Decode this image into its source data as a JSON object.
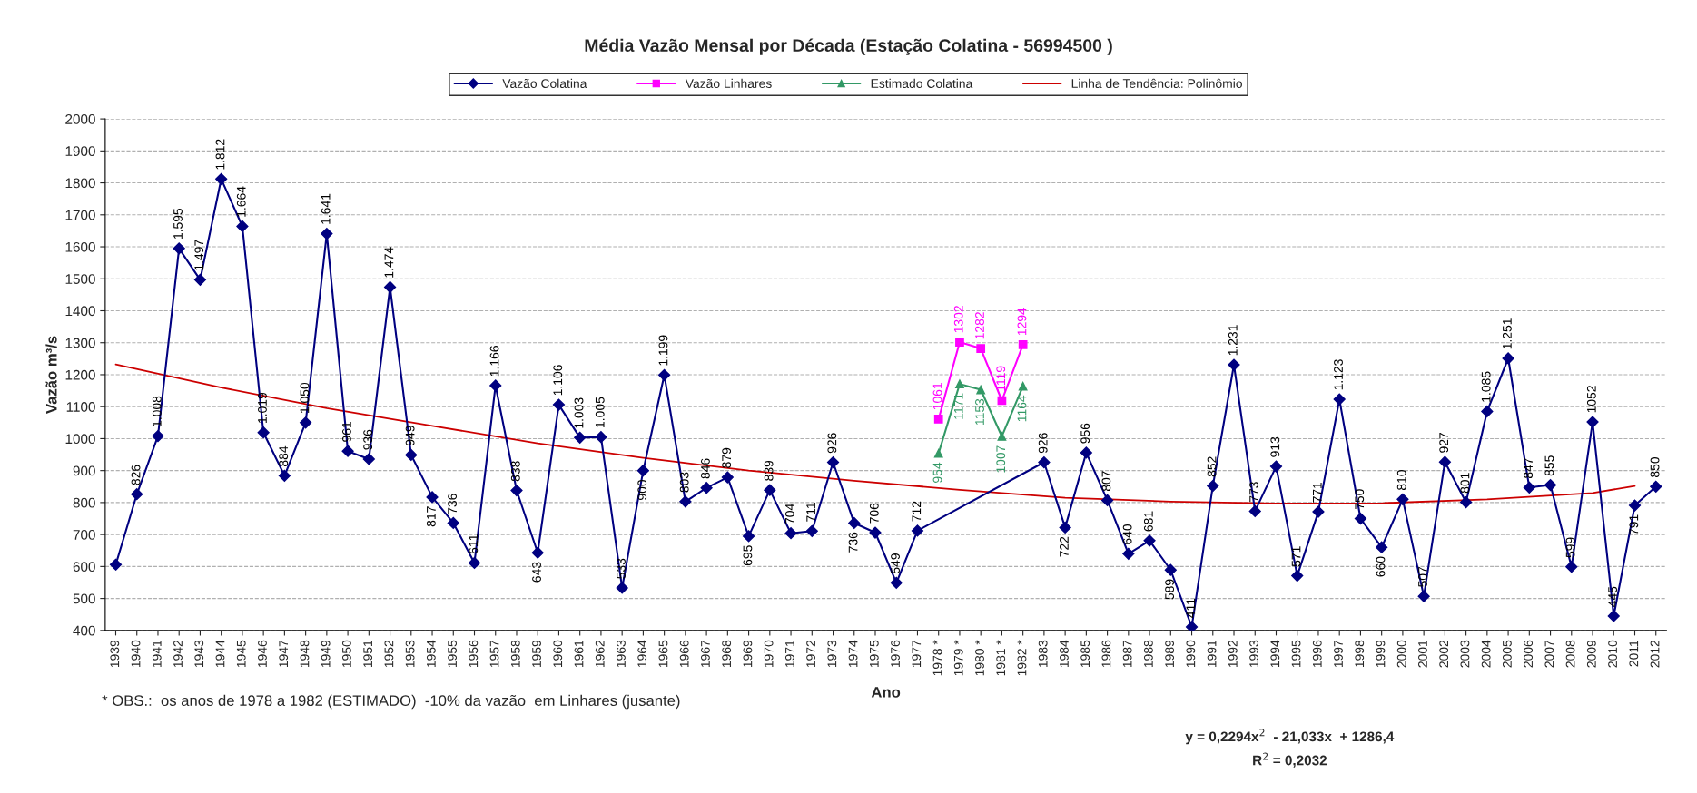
{
  "chart_data": {
    "type": "line",
    "title": "Média Vazão Mensal por Década (Estação Colatina - 56994500 )",
    "xlabel": "Ano",
    "ylabel": "Vazão m³/s",
    "categories": [
      "1939",
      "1940",
      "1941",
      "1942",
      "1943",
      "1944",
      "1945",
      "1946",
      "1947",
      "1948",
      "1949",
      "1950",
      "1951",
      "1952",
      "1953",
      "1954",
      "1955",
      "1956",
      "1957",
      "1958",
      "1959",
      "1960",
      "1961",
      "1962",
      "1963",
      "1964",
      "1965",
      "1966",
      "1967",
      "1968",
      "1969",
      "1970",
      "1971",
      "1972",
      "1973",
      "1974",
      "1975",
      "1976",
      "1977",
      "1978 *",
      "1979 *",
      "1980 *",
      "1981 *",
      "1982 *",
      "1983",
      "1984",
      "1985",
      "1986",
      "1987",
      "1988",
      "1989",
      "1990",
      "1991",
      "1992",
      "1993",
      "1994",
      "1995",
      "1996",
      "1997",
      "1998",
      "1999",
      "2000",
      "2001",
      "2002",
      "2003",
      "2004",
      "2005",
      "2006",
      "2007",
      "2008",
      "2009",
      "2010",
      "2011",
      "2012"
    ],
    "series": [
      {
        "name": "Vazão Colatina",
        "color": "#000080",
        "marker": "diamond",
        "values": [
          606,
          826,
          1008,
          1595,
          1497,
          1812,
          1664,
          1019,
          884,
          1050,
          1641,
          961,
          936,
          1474,
          949,
          817,
          736,
          611,
          1166,
          838,
          643,
          1106,
          1003,
          1005,
          533,
          900,
          1199,
          803,
          846,
          879,
          695,
          839,
          704,
          711,
          926,
          736,
          706,
          549,
          712,
          null,
          null,
          null,
          null,
          null,
          926,
          722,
          956,
          807,
          640,
          681,
          589,
          411,
          852,
          1231,
          773,
          913,
          571,
          771,
          1123,
          750,
          660,
          810,
          507,
          927,
          801,
          1085,
          1251,
          847,
          855,
          599,
          1052,
          445,
          791,
          850
        ],
        "value_labels": [
          null,
          "826",
          "1.008",
          "1.595",
          "1.497",
          "1.812",
          "1.664",
          "1.019",
          "884",
          "1.050",
          "1.641",
          "961",
          "936",
          "1.474",
          "949",
          "817",
          "736",
          "611",
          "1.166",
          "838",
          "643",
          "1.106",
          "1.003",
          "1.005",
          "533",
          "900",
          "1.199",
          "803",
          "846",
          "879",
          "695",
          "839",
          "704",
          "711",
          "926",
          "736",
          "706",
          "549",
          "712",
          null,
          null,
          null,
          null,
          null,
          "926",
          "722",
          "956",
          "807",
          "640",
          "681",
          "589",
          "411",
          "852",
          "1.231",
          "773",
          "913",
          "571",
          "771",
          "1.123",
          "750",
          "660",
          "810",
          "507",
          "927",
          "801",
          "1.085",
          "1.251",
          "847",
          "855",
          "599",
          "1052",
          "445",
          "791",
          "850"
        ]
      },
      {
        "name": "Vazão Linhares",
        "color": "#ff00ff",
        "marker": "square",
        "values": [
          null,
          null,
          null,
          null,
          null,
          null,
          null,
          null,
          null,
          null,
          null,
          null,
          null,
          null,
          null,
          null,
          null,
          null,
          null,
          null,
          null,
          null,
          null,
          null,
          null,
          null,
          null,
          null,
          null,
          null,
          null,
          null,
          null,
          null,
          null,
          null,
          null,
          null,
          null,
          1061,
          1302,
          1282,
          1119,
          1294,
          null,
          null,
          null,
          null,
          null,
          null,
          null,
          null,
          null,
          null,
          null,
          null,
          null,
          null,
          null,
          null,
          null,
          null,
          null,
          null,
          null,
          null,
          null,
          null,
          null,
          null,
          null,
          null,
          null,
          null
        ],
        "value_labels": [
          null,
          null,
          null,
          null,
          null,
          null,
          null,
          null,
          null,
          null,
          null,
          null,
          null,
          null,
          null,
          null,
          null,
          null,
          null,
          null,
          null,
          null,
          null,
          null,
          null,
          null,
          null,
          null,
          null,
          null,
          null,
          null,
          null,
          null,
          null,
          null,
          null,
          null,
          null,
          "1061",
          "1302",
          "1282",
          "1119",
          "1294",
          null,
          null,
          null,
          null,
          null,
          null,
          null,
          null,
          null,
          null,
          null,
          null,
          null,
          null,
          null,
          null,
          null,
          null,
          null,
          null,
          null,
          null,
          null,
          null,
          null,
          null,
          null,
          null,
          null,
          null
        ]
      },
      {
        "name": "Estimado Colatina",
        "color": "#339966",
        "marker": "triangle",
        "values": [
          null,
          null,
          null,
          null,
          null,
          null,
          null,
          null,
          null,
          null,
          null,
          null,
          null,
          null,
          null,
          null,
          null,
          null,
          null,
          null,
          null,
          null,
          null,
          null,
          null,
          null,
          null,
          null,
          null,
          null,
          null,
          null,
          null,
          null,
          null,
          null,
          null,
          null,
          null,
          954,
          1171,
          1153,
          1007,
          1164,
          null,
          null,
          null,
          null,
          null,
          null,
          null,
          null,
          null,
          null,
          null,
          null,
          null,
          null,
          null,
          null,
          null,
          null,
          null,
          null,
          null,
          null,
          null,
          null,
          null,
          null,
          null,
          null,
          null,
          null
        ],
        "value_labels": [
          null,
          null,
          null,
          null,
          null,
          null,
          null,
          null,
          null,
          null,
          null,
          null,
          null,
          null,
          null,
          null,
          null,
          null,
          null,
          null,
          null,
          null,
          null,
          null,
          null,
          null,
          null,
          null,
          null,
          null,
          null,
          null,
          null,
          null,
          null,
          null,
          null,
          null,
          null,
          "954",
          "1171",
          "1153",
          "1007",
          "1164",
          null,
          null,
          null,
          null,
          null,
          null,
          null,
          null,
          null,
          null,
          null,
          null,
          null,
          null,
          null,
          null,
          null,
          null,
          null,
          null,
          null,
          null,
          null,
          null,
          null,
          null,
          null,
          null,
          null,
          null
        ]
      },
      {
        "name": "Linha de Tendência: Polinômio",
        "color": "#cc0000",
        "marker": "none",
        "values": [
          1232,
          null,
          null,
          null,
          null,
          1160,
          null,
          null,
          null,
          null,
          1095,
          null,
          null,
          null,
          null,
          1040,
          null,
          null,
          null,
          null,
          985,
          null,
          null,
          null,
          null,
          940,
          null,
          null,
          null,
          null,
          900,
          null,
          null,
          null,
          null,
          868,
          null,
          null,
          null,
          null,
          840,
          null,
          null,
          null,
          null,
          815,
          null,
          null,
          null,
          null,
          803,
          null,
          null,
          null,
          null,
          797,
          null,
          null,
          null,
          null,
          798,
          null,
          null,
          null,
          null,
          810,
          null,
          null,
          null,
          null,
          830,
          null,
          852,
          null
        ]
      }
    ],
    "ylim": [
      400,
      2000
    ],
    "yticks": [
      400,
      500,
      600,
      700,
      800,
      900,
      1000,
      1100,
      1200,
      1300,
      1400,
      1500,
      1600,
      1700,
      1800,
      1900,
      2000
    ],
    "grid": "y",
    "legend": "top",
    "annotations": [
      "* OBS.:  os anos de 1978 a 1982 (ESTIMADO)  -10% da vazão  em Linhares (jusante)",
      "y = 0,2294x$^{2}$  - 21,033x  + 1286,4",
      "R$^{2}$ = 0,2032"
    ]
  }
}
